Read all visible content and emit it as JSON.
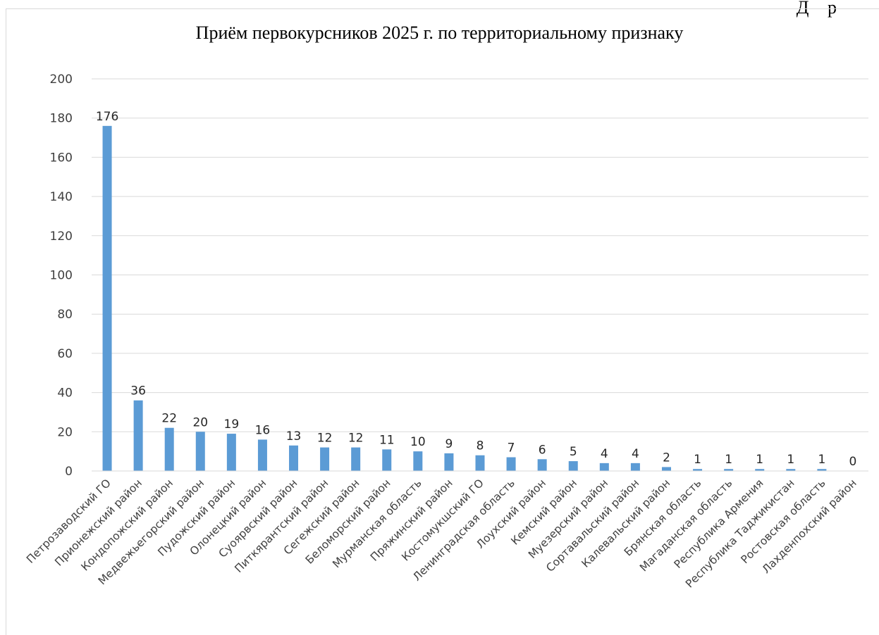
{
  "page": {
    "corner_text": "Д р"
  },
  "colors": {
    "bar": "#5b9bd5",
    "grid": "#d9d9d9",
    "text": "#404040"
  },
  "chart_data": {
    "type": "bar",
    "title": "Приём первокурсников 2025 г. по территориальному признаку",
    "xlabel": "",
    "ylabel": "",
    "ylim": [
      0,
      200
    ],
    "yticks": [
      0,
      20,
      40,
      60,
      80,
      100,
      120,
      140,
      160,
      180,
      200
    ],
    "grid": true,
    "legend": "none",
    "categories": [
      "Петрозаводский ГО",
      "Прионежский район",
      "Кондопожский район",
      "Медвежьегорский район",
      "Пудожский район",
      "Олонецкий район",
      "Суоярвский район",
      "Питкярантский район",
      "Сегежский район",
      "Беломорский район",
      "Мурманская область",
      "Пряжинский район",
      "Костомукшский ГО",
      "Ленинградская область",
      "Лоухский район",
      "Кемский район",
      "Муезерский район",
      "Сортавальский район",
      "Калевальский район",
      "Брянская область",
      "Магаданская область",
      "Республика Армения",
      "Республика Таджикистан",
      "Ростовская область",
      "Лахденпохский район"
    ],
    "values": [
      176,
      36,
      22,
      20,
      19,
      16,
      13,
      12,
      12,
      11,
      10,
      9,
      8,
      7,
      6,
      5,
      4,
      4,
      2,
      1,
      1,
      1,
      1,
      1,
      0
    ]
  }
}
